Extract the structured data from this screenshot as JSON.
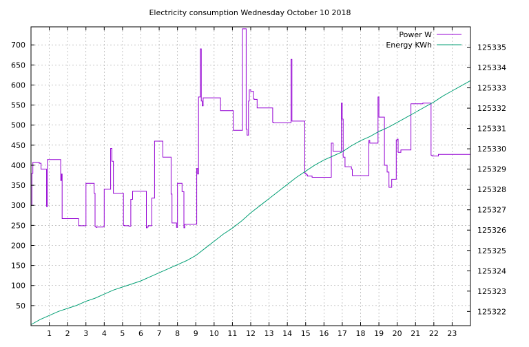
{
  "chart_data": {
    "type": "line",
    "title": "Electricity consumption Wednesday October 10 2018",
    "xlabel": "",
    "ylabel": "",
    "xlim": [
      0,
      24
    ],
    "ylim": [
      0,
      745
    ],
    "y2lim": [
      125321.3,
      125336.0
    ],
    "x_ticks": [
      1,
      2,
      3,
      4,
      5,
      6,
      7,
      8,
      9,
      10,
      11,
      12,
      13,
      14,
      15,
      16,
      17,
      18,
      19,
      20,
      21,
      22,
      23
    ],
    "y_ticks": [
      50,
      100,
      150,
      200,
      250,
      300,
      350,
      400,
      450,
      500,
      550,
      600,
      650,
      700
    ],
    "y2_ticks": [
      125322,
      125323,
      125324,
      125325,
      125326,
      125327,
      125328,
      125329,
      125330,
      125331,
      125332,
      125333,
      125334,
      125335
    ],
    "grid": true,
    "legend_position": "top-right",
    "series": [
      {
        "name": "Power W",
        "color": "#9400d3",
        "axis": "left",
        "step": true,
        "x": [
          0,
          0.05,
          0.1,
          0.4,
          0.45,
          0.55,
          0.85,
          0.9,
          1.6,
          1.62,
          1.67,
          1.7,
          2.55,
          2.6,
          3.0,
          3.05,
          3.45,
          3.5,
          3.55,
          3.6,
          3.95,
          4.0,
          4.35,
          4.42,
          4.5,
          5.05,
          5.1,
          5.35,
          5.45,
          5.55,
          6.3,
          6.35,
          6.4,
          6.6,
          6.75,
          7.2,
          7.65,
          7.7,
          7.95,
          8.0,
          8.25,
          8.35,
          8.4,
          9.05,
          9.1,
          9.15,
          9.25,
          9.3,
          9.35,
          9.4,
          10.35,
          11.05,
          11.55,
          11.75,
          11.8,
          11.88,
          11.92,
          12.0,
          12.15,
          12.2,
          12.35,
          12.4,
          13.2,
          13.25,
          14.2,
          14.25,
          14.95,
          15.0,
          15.05,
          15.1,
          15.35,
          16.4,
          16.5,
          16.95,
          17.0,
          17.05,
          17.15,
          17.25,
          17.5,
          17.55,
          18.45,
          18.5,
          18.95,
          19.0,
          19.3,
          19.45,
          19.55,
          19.7,
          19.75,
          19.95,
          20.0,
          20.05,
          20.2,
          20.75,
          21.4,
          21.85,
          21.9,
          22.25,
          22.3,
          22.35,
          23.5
        ],
        "y": [
          300,
          380,
          407,
          407,
          405,
          390,
          297,
          414,
          414,
          362,
          378,
          267,
          267,
          249,
          355,
          355,
          330,
          247,
          245,
          246,
          247,
          340,
          442,
          410,
          330,
          250,
          249,
          248,
          315,
          335,
          244,
          246,
          249,
          318,
          460,
          420,
          328,
          256,
          245,
          355,
          334,
          244,
          253,
          392,
          378,
          570,
          690,
          560,
          548,
          568,
          536,
          487,
          740,
          490,
          475,
          560,
          588,
          584,
          565,
          564,
          543,
          543,
          507,
          506,
          664,
          510,
          380,
          378,
          376,
          373,
          370,
          455,
          435,
          555,
          515,
          420,
          396,
          396,
          390,
          374,
          462,
          455,
          570,
          520,
          400,
          383,
          345,
          365,
          365,
          463,
          465,
          432,
          438,
          553,
          555,
          425,
          423,
          427,
          427,
          427,
          427
        ]
      },
      {
        "name": "Energy KWh",
        "color": "#009e73",
        "axis": "right",
        "step": false,
        "x": [
          0,
          0.5,
          1,
          1.5,
          2,
          2.5,
          3,
          3.5,
          4,
          4.5,
          5,
          5.5,
          6,
          6.5,
          7,
          7.5,
          8,
          8.5,
          9,
          9.5,
          10,
          10.5,
          11,
          11.5,
          12,
          12.5,
          13,
          13.5,
          14,
          14.5,
          15,
          15.5,
          16,
          16.5,
          17,
          17.5,
          18,
          18.5,
          19,
          19.5,
          20,
          20.5,
          21,
          21.5,
          22,
          22.5,
          23,
          23.5,
          24
        ],
        "y": [
          125321.35,
          125321.6,
          125321.8,
          125322.0,
          125322.15,
          125322.3,
          125322.5,
          125322.65,
          125322.85,
          125323.05,
          125323.2,
          125323.35,
          125323.5,
          125323.7,
          125323.9,
          125324.1,
          125324.3,
          125324.5,
          125324.75,
          125325.1,
          125325.45,
          125325.8,
          125326.1,
          125326.45,
          125326.85,
          125327.2,
          125327.55,
          125327.9,
          125328.25,
          125328.6,
          125328.9,
          125329.2,
          125329.45,
          125329.65,
          125329.85,
          125330.15,
          125330.4,
          125330.6,
          125330.85,
          125331.05,
          125331.3,
          125331.55,
          125331.8,
          125332.05,
          125332.3,
          125332.6,
          125332.85,
          125333.1,
          125333.35
        ]
      }
    ]
  }
}
